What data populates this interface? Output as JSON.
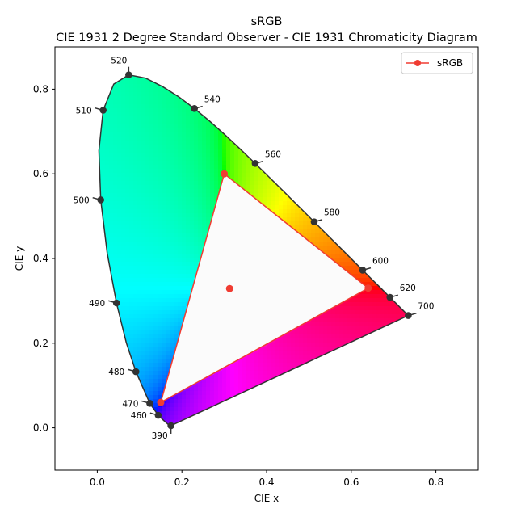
{
  "chart_data": {
    "type": "scatter",
    "title": "sRGB",
    "subtitle": "CIE 1931 2 Degree Standard Observer - CIE 1931 Chromaticity Diagram",
    "xlabel": "CIE x",
    "ylabel": "CIE y",
    "xlim": [
      -0.1,
      0.9
    ],
    "ylim": [
      -0.1,
      0.9
    ],
    "x_ticks": [
      "0.0",
      "0.2",
      "0.4",
      "0.6",
      "0.8"
    ],
    "y_ticks": [
      "0.0",
      "0.2",
      "0.4",
      "0.6",
      "0.8"
    ],
    "legend": {
      "entries": [
        "sRGB"
      ],
      "placement": "top-right"
    },
    "grid": false,
    "colors": {
      "gamut": "#f03c32",
      "locus": "#333333",
      "marker": "#333333"
    },
    "spectral_locus_points": [
      {
        "x": 0.1741,
        "y": 0.005
      },
      {
        "x": 0.1738,
        "y": 0.0049
      },
      {
        "x": 0.173,
        "y": 0.0048
      },
      {
        "x": 0.1714,
        "y": 0.0051
      },
      {
        "x": 0.1689,
        "y": 0.0069
      },
      {
        "x": 0.1644,
        "y": 0.0109
      },
      {
        "x": 0.1566,
        "y": 0.0177
      },
      {
        "x": 0.144,
        "y": 0.0297
      },
      {
        "x": 0.1241,
        "y": 0.0578
      },
      {
        "x": 0.0913,
        "y": 0.1327
      },
      {
        "x": 0.0687,
        "y": 0.2007
      },
      {
        "x": 0.0454,
        "y": 0.295
      },
      {
        "x": 0.0235,
        "y": 0.4127
      },
      {
        "x": 0.0082,
        "y": 0.5384
      },
      {
        "x": 0.0039,
        "y": 0.6548
      },
      {
        "x": 0.0139,
        "y": 0.7502
      },
      {
        "x": 0.0389,
        "y": 0.812
      },
      {
        "x": 0.0743,
        "y": 0.8338
      },
      {
        "x": 0.1142,
        "y": 0.8262
      },
      {
        "x": 0.1547,
        "y": 0.8059
      },
      {
        "x": 0.1929,
        "y": 0.7816
      },
      {
        "x": 0.2296,
        "y": 0.7543
      },
      {
        "x": 0.2658,
        "y": 0.7243
      },
      {
        "x": 0.3016,
        "y": 0.6923
      },
      {
        "x": 0.3373,
        "y": 0.6589
      },
      {
        "x": 0.3731,
        "y": 0.6245
      },
      {
        "x": 0.4087,
        "y": 0.5896
      },
      {
        "x": 0.4441,
        "y": 0.5547
      },
      {
        "x": 0.4788,
        "y": 0.5202
      },
      {
        "x": 0.5125,
        "y": 0.4866
      },
      {
        "x": 0.5448,
        "y": 0.4544
      },
      {
        "x": 0.5752,
        "y": 0.4242
      },
      {
        "x": 0.6029,
        "y": 0.3965
      },
      {
        "x": 0.627,
        "y": 0.3725
      },
      {
        "x": 0.6482,
        "y": 0.3514
      },
      {
        "x": 0.6658,
        "y": 0.334
      },
      {
        "x": 0.6801,
        "y": 0.3197
      },
      {
        "x": 0.6915,
        "y": 0.3083
      },
      {
        "x": 0.7006,
        "y": 0.2993
      },
      {
        "x": 0.7079,
        "y": 0.292
      },
      {
        "x": 0.714,
        "y": 0.2859
      },
      {
        "x": 0.719,
        "y": 0.2809
      },
      {
        "x": 0.723,
        "y": 0.277
      },
      {
        "x": 0.726,
        "y": 0.274
      },
      {
        "x": 0.7283,
        "y": 0.2717
      },
      {
        "x": 0.73,
        "y": 0.27
      },
      {
        "x": 0.732,
        "y": 0.268
      },
      {
        "x": 0.7347,
        "y": 0.2653
      }
    ],
    "wavelength_markers": [
      {
        "label": "390",
        "x": 0.1741,
        "y": 0.005,
        "dir": "down"
      },
      {
        "label": "460",
        "x": 0.144,
        "y": 0.0297,
        "dir": "left"
      },
      {
        "label": "470",
        "x": 0.1241,
        "y": 0.0578,
        "dir": "left"
      },
      {
        "label": "480",
        "x": 0.0913,
        "y": 0.1327,
        "dir": "left"
      },
      {
        "label": "490",
        "x": 0.0454,
        "y": 0.295,
        "dir": "left"
      },
      {
        "label": "500",
        "x": 0.0082,
        "y": 0.5384,
        "dir": "left"
      },
      {
        "label": "510",
        "x": 0.0139,
        "y": 0.7502,
        "dir": "left"
      },
      {
        "label": "520",
        "x": 0.0743,
        "y": 0.8338,
        "dir": "up"
      },
      {
        "label": "540",
        "x": 0.2296,
        "y": 0.7543,
        "dir": "right"
      },
      {
        "label": "560",
        "x": 0.3731,
        "y": 0.6245,
        "dir": "right"
      },
      {
        "label": "580",
        "x": 0.5125,
        "y": 0.4866,
        "dir": "right"
      },
      {
        "label": "600",
        "x": 0.627,
        "y": 0.3725,
        "dir": "right"
      },
      {
        "label": "620",
        "x": 0.6915,
        "y": 0.3083,
        "dir": "right"
      },
      {
        "label": "700",
        "x": 0.7347,
        "y": 0.2653,
        "dir": "right"
      }
    ],
    "series": [
      {
        "name": "sRGB",
        "points": [
          {
            "x": 0.64,
            "y": 0.33
          },
          {
            "x": 0.3,
            "y": 0.6
          },
          {
            "x": 0.15,
            "y": 0.06
          }
        ],
        "whitepoint": {
          "x": 0.3127,
          "y": 0.329
        }
      }
    ]
  }
}
